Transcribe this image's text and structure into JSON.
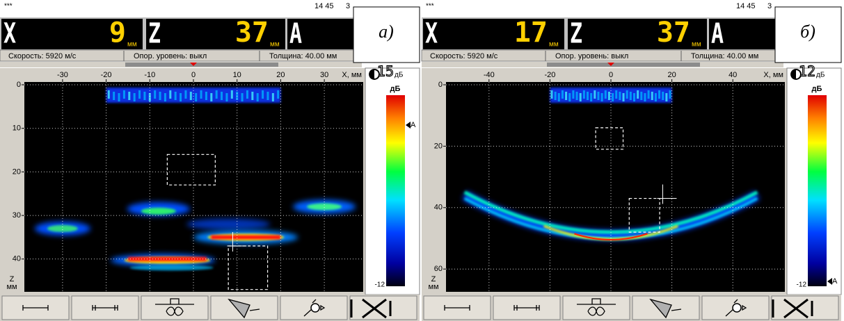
{
  "panels": [
    {
      "label": "а)",
      "status": "***",
      "time": "14 45",
      "time_extra": "3",
      "readouts": [
        {
          "axis": "X",
          "value": "9",
          "unit": "мм"
        },
        {
          "axis": "Z",
          "value": "37",
          "unit": "мм"
        },
        {
          "axis": "A"
        }
      ],
      "info": [
        "Скорость: 5920 м/с",
        "Опор. уровень: выкл",
        "Толщина: 40.00 мм"
      ],
      "gain": "15",
      "gain_unit": "дБ",
      "x_ticks": [
        -30,
        -20,
        -10,
        0,
        10,
        20,
        30
      ],
      "x_axis_label": "X, мм",
      "z_ticks": [
        0,
        10,
        20,
        30,
        40
      ],
      "z_axis_label": [
        "Z",
        "мм"
      ],
      "colorbar_title": "дБ",
      "colorbar_marker": "A",
      "colorbar_min": "-12"
    },
    {
      "label": "б)",
      "status": "***",
      "time": "14 45",
      "time_extra": "3",
      "readouts": [
        {
          "axis": "X",
          "value": "17",
          "unit": "мм"
        },
        {
          "axis": "Z",
          "value": "37",
          "unit": "мм"
        },
        {
          "axis": "A"
        }
      ],
      "info": [
        "Скорость: 5920 м/с",
        "Опор. уровень: выкл",
        "Толщина: 40.00 мм"
      ],
      "gain": "12",
      "gain_unit": "дБ",
      "x_ticks": [
        -40,
        -20,
        0,
        20,
        40
      ],
      "x_axis_label": "X, мм",
      "z_ticks": [
        0,
        20,
        40,
        60
      ],
      "z_axis_label": [
        "Z",
        "мм"
      ],
      "colorbar_title": "дБ",
      "colorbar_marker": "A",
      "colorbar_min": "-12"
    }
  ]
}
